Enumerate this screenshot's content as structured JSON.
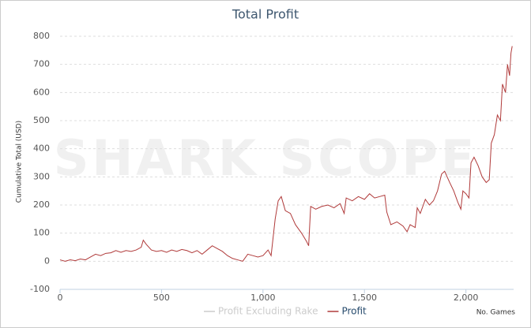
{
  "chart_data": {
    "type": "line",
    "title": "Total Profit",
    "watermark": "SHARK SCOPE",
    "y_label": "Cumulative Total (USD)",
    "x_label": "No. Games",
    "xlim": [
      0,
      2235
    ],
    "ylim": [
      -100,
      800
    ],
    "xticks": [
      0,
      500,
      {
        "value": 1000,
        "label": "1,000"
      },
      {
        "value": 1500,
        "label": "1,500"
      },
      {
        "value": 2000,
        "label": "2,000"
      }
    ],
    "yticks": [
      -100,
      0,
      100,
      200,
      300,
      400,
      500,
      600,
      700,
      800
    ],
    "grid": true,
    "legend": "bottom",
    "x": [
      0,
      25,
      50,
      75,
      100,
      125,
      150,
      175,
      200,
      225,
      250,
      275,
      300,
      325,
      350,
      375,
      400,
      410,
      425,
      450,
      475,
      500,
      525,
      550,
      575,
      600,
      625,
      650,
      675,
      700,
      725,
      750,
      775,
      800,
      825,
      850,
      875,
      900,
      925,
      950,
      975,
      1000,
      1025,
      1040,
      1060,
      1075,
      1090,
      1110,
      1135,
      1160,
      1190,
      1215,
      1225,
      1235,
      1260,
      1290,
      1320,
      1350,
      1380,
      1400,
      1410,
      1440,
      1470,
      1500,
      1525,
      1550,
      1575,
      1600,
      1610,
      1630,
      1660,
      1690,
      1710,
      1725,
      1750,
      1760,
      1775,
      1800,
      1820,
      1840,
      1860,
      1880,
      1895,
      1920,
      1940,
      1960,
      1975,
      1985,
      2000,
      2015,
      2025,
      2040,
      2060,
      2080,
      2100,
      2115,
      2125,
      2140,
      2155,
      2170,
      2180,
      2195,
      2205,
      2215,
      2222,
      2228
    ],
    "series": [
      {
        "name": "Profit Excluding Rake",
        "color": "#cccccc",
        "visible": false
      },
      {
        "name": "Profit",
        "color": "#b03a3a",
        "visible": true,
        "values": [
          5,
          0,
          5,
          2,
          8,
          5,
          15,
          25,
          20,
          28,
          30,
          38,
          32,
          38,
          35,
          40,
          50,
          75,
          60,
          40,
          35,
          38,
          32,
          40,
          35,
          42,
          38,
          30,
          38,
          25,
          40,
          55,
          45,
          35,
          20,
          10,
          5,
          0,
          25,
          20,
          15,
          20,
          40,
          20,
          150,
          215,
          230,
          180,
          170,
          130,
          100,
          70,
          55,
          195,
          185,
          195,
          200,
          190,
          205,
          170,
          225,
          215,
          230,
          220,
          240,
          225,
          230,
          235,
          175,
          130,
          140,
          125,
          105,
          130,
          120,
          190,
          170,
          220,
          200,
          215,
          250,
          310,
          320,
          280,
          250,
          210,
          185,
          250,
          240,
          225,
          350,
          370,
          340,
          300,
          280,
          290,
          420,
          450,
          520,
          500,
          630,
          600,
          700,
          660,
          740,
          765
        ]
      }
    ]
  }
}
